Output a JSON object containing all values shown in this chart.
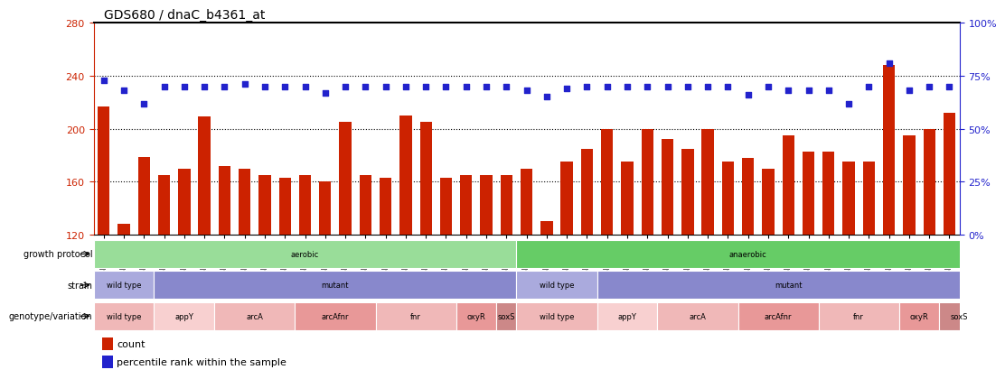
{
  "title": "GDS680 / dnaC_b4361_at",
  "samples": [
    "GSM18261",
    "GSM18262",
    "GSM18263",
    "GSM18235",
    "GSM18236",
    "GSM18237",
    "GSM18246",
    "GSM18247",
    "GSM18248",
    "GSM18249",
    "GSM18250",
    "GSM18251",
    "GSM18252",
    "GSM18253",
    "GSM18254",
    "GSM18255",
    "GSM18256",
    "GSM18257",
    "GSM18258",
    "GSM18259",
    "GSM18260",
    "GSM18286",
    "GSM18287",
    "GSM18288",
    "GSM18289",
    "GSM18264",
    "GSM18265",
    "GSM18266",
    "GSM18271",
    "GSM18272",
    "GSM18273",
    "GSM18274",
    "GSM18275",
    "GSM18276",
    "GSM18277",
    "GSM18278",
    "GSM18279",
    "GSM18280",
    "GSM18281",
    "GSM18282",
    "GSM18283",
    "GSM18284",
    "GSM18285"
  ],
  "counts": [
    217,
    128,
    179,
    165,
    170,
    209,
    172,
    170,
    165,
    163,
    165,
    160,
    205,
    165,
    163,
    210,
    205,
    163,
    165,
    165,
    165,
    170,
    130,
    175,
    185,
    200,
    175,
    200,
    192,
    185,
    200,
    175,
    178,
    170,
    195,
    183,
    183,
    175,
    175,
    248,
    195,
    200,
    212
  ],
  "percentiles": [
    73,
    68,
    62,
    70,
    70,
    70,
    70,
    71,
    70,
    70,
    70,
    67,
    70,
    70,
    70,
    70,
    70,
    70,
    70,
    70,
    70,
    68,
    65,
    69,
    70,
    70,
    70,
    70,
    70,
    70,
    70,
    70,
    66,
    70,
    68,
    68,
    68,
    62,
    70,
    81,
    68,
    70,
    70
  ],
  "ylim_left": [
    120,
    280
  ],
  "ylim_right": [
    0,
    100
  ],
  "yticks_left": [
    120,
    160,
    200,
    240,
    280
  ],
  "yticks_right": [
    0,
    25,
    50,
    75,
    100
  ],
  "bar_color": "#cc2200",
  "dot_color": "#2222cc",
  "bg_color": "#ffffff",
  "growth_protocol_labels": [
    {
      "text": "aerobic",
      "start": 0,
      "end": 20,
      "color": "#99dd99"
    },
    {
      "text": "anaerobic",
      "start": 21,
      "end": 43,
      "color": "#66cc66"
    }
  ],
  "strain_labels": [
    {
      "text": "wild type",
      "start": 0,
      "end": 2,
      "color": "#aaaadd"
    },
    {
      "text": "mutant",
      "start": 3,
      "end": 20,
      "color": "#8888cc"
    },
    {
      "text": "wild type",
      "start": 21,
      "end": 24,
      "color": "#aaaadd"
    },
    {
      "text": "mutant",
      "start": 25,
      "end": 43,
      "color": "#8888cc"
    }
  ],
  "genotype_labels": [
    {
      "text": "wild type",
      "start": 0,
      "end": 2,
      "color": "#f0b8b8"
    },
    {
      "text": "appY",
      "start": 3,
      "end": 5,
      "color": "#f8d0d0"
    },
    {
      "text": "arcA",
      "start": 6,
      "end": 9,
      "color": "#f0b8b8"
    },
    {
      "text": "arcAfnr",
      "start": 10,
      "end": 13,
      "color": "#e89898"
    },
    {
      "text": "fnr",
      "start": 14,
      "end": 17,
      "color": "#f0b8b8"
    },
    {
      "text": "oxyR",
      "start": 18,
      "end": 19,
      "color": "#e89898"
    },
    {
      "text": "soxS",
      "start": 20,
      "end": 20,
      "color": "#cc8888"
    },
    {
      "text": "wild type",
      "start": 21,
      "end": 24,
      "color": "#f0b8b8"
    },
    {
      "text": "appY",
      "start": 25,
      "end": 27,
      "color": "#f8d0d0"
    },
    {
      "text": "arcA",
      "start": 28,
      "end": 31,
      "color": "#f0b8b8"
    },
    {
      "text": "arcAfnr",
      "start": 32,
      "end": 35,
      "color": "#e89898"
    },
    {
      "text": "fnr",
      "start": 36,
      "end": 39,
      "color": "#f0b8b8"
    },
    {
      "text": "oxyR",
      "start": 40,
      "end": 41,
      "color": "#e89898"
    },
    {
      "text": "soxS",
      "start": 42,
      "end": 43,
      "color": "#cc8888"
    }
  ],
  "legend_count_color": "#cc2200",
  "legend_pct_color": "#2222cc",
  "legend_count_label": "count",
  "legend_pct_label": "percentile rank within the sample",
  "row_label_fontsize": 7,
  "bar_fontsize": 6,
  "title_fontsize": 10
}
